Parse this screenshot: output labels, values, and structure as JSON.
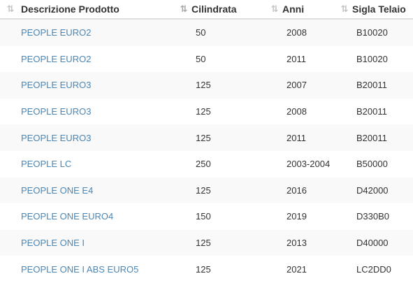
{
  "table": {
    "columns": [
      {
        "label": "Descrizione Prodotto",
        "sort_icon": "sort-updown-icon"
      },
      {
        "label": "Cilindrata",
        "sort_icon": "sort-numeric-icon"
      },
      {
        "label": "Anni",
        "sort_icon": "sort-updown-icon"
      },
      {
        "label": "Sigla Telaio",
        "sort_icon": "sort-updown-icon"
      }
    ],
    "rows": [
      {
        "descrizione": "PEOPLE EURO2",
        "cilindrata": "50",
        "anni": "2008",
        "sigla": "B10020"
      },
      {
        "descrizione": "PEOPLE EURO2",
        "cilindrata": "50",
        "anni": "2011",
        "sigla": "B10020"
      },
      {
        "descrizione": "PEOPLE EURO3",
        "cilindrata": "125",
        "anni": "2007",
        "sigla": "B20011"
      },
      {
        "descrizione": "PEOPLE EURO3",
        "cilindrata": "125",
        "anni": "2008",
        "sigla": "B20011"
      },
      {
        "descrizione": "PEOPLE EURO3",
        "cilindrata": "125",
        "anni": "2011",
        "sigla": "B20011"
      },
      {
        "descrizione": "PEOPLE LC",
        "cilindrata": "250",
        "anni": "2003-2004",
        "sigla": "B50000"
      },
      {
        "descrizione": "PEOPLE ONE E4",
        "cilindrata": "125",
        "anni": "2016",
        "sigla": "D42000"
      },
      {
        "descrizione": "PEOPLE ONE EURO4",
        "cilindrata": "150",
        "anni": "2019",
        "sigla": "D330B0"
      },
      {
        "descrizione": "PEOPLE ONE I",
        "cilindrata": "125",
        "anni": "2013",
        "sigla": "D40000"
      },
      {
        "descrizione": "PEOPLE ONE I ABS EURO5",
        "cilindrata": "125",
        "anni": "2021",
        "sigla": "LC2DD0"
      }
    ]
  },
  "colors": {
    "link": "#4b86b4",
    "text": "#333333",
    "stripe": "#f9f9f9",
    "sort_icon": "#c4c4c4"
  }
}
